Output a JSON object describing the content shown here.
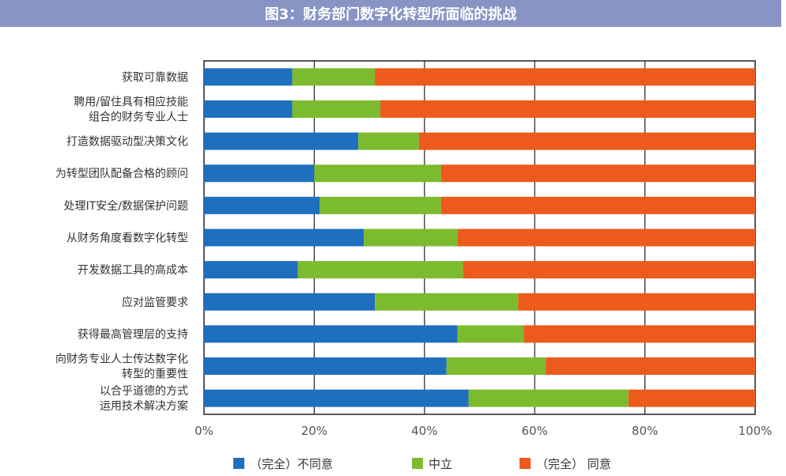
{
  "title": "图3：财务部门数字化转型所面临的挑战",
  "colors": {
    "title_bar": "#8794c4",
    "disagree": "#1f6fbf",
    "neutral": "#7dbb2e",
    "agree": "#ec5a1c"
  },
  "chart_data": {
    "type": "bar",
    "orientation": "horizontal",
    "stacked": true,
    "title": "图3：财务部门数字化转型所面临的挑战",
    "xlabel": "",
    "ylabel": "",
    "xlim": [
      0,
      100
    ],
    "x_ticks": [
      "0%",
      "20%",
      "40%",
      "60%",
      "80%",
      "100%"
    ],
    "grid": true,
    "legend_position": "bottom",
    "categories": [
      [
        "获取可靠数据"
      ],
      [
        "聘用/留住具有相应技能",
        "组合的财务专业人士"
      ],
      [
        "打造数据驱动型决策文化"
      ],
      [
        "为转型团队配备合格的顾问"
      ],
      [
        "处理IT安全/数据保护问题"
      ],
      [
        "从财务角度看数字化转型"
      ],
      [
        "开发数据工具的高成本"
      ],
      [
        "应对监管要求"
      ],
      [
        "获得最高管理层的支持"
      ],
      [
        "向财务专业人士传达数字化",
        "转型的重要性"
      ],
      [
        "以合乎道德的方式",
        "运用技术解决方案"
      ]
    ],
    "series": [
      {
        "name": "（完全）不同意",
        "color": "#1f6fbf",
        "values": [
          16,
          16,
          28,
          20,
          21,
          29,
          17,
          31,
          46,
          44,
          48
        ]
      },
      {
        "name": "中立",
        "color": "#7dbb2e",
        "values": [
          15,
          16,
          11,
          23,
          22,
          17,
          30,
          26,
          12,
          18,
          29
        ]
      },
      {
        "name": "（完全） 同意",
        "color": "#ec5a1c",
        "values": [
          69,
          68,
          61,
          57,
          57,
          54,
          53,
          43,
          42,
          38,
          23
        ]
      }
    ]
  }
}
